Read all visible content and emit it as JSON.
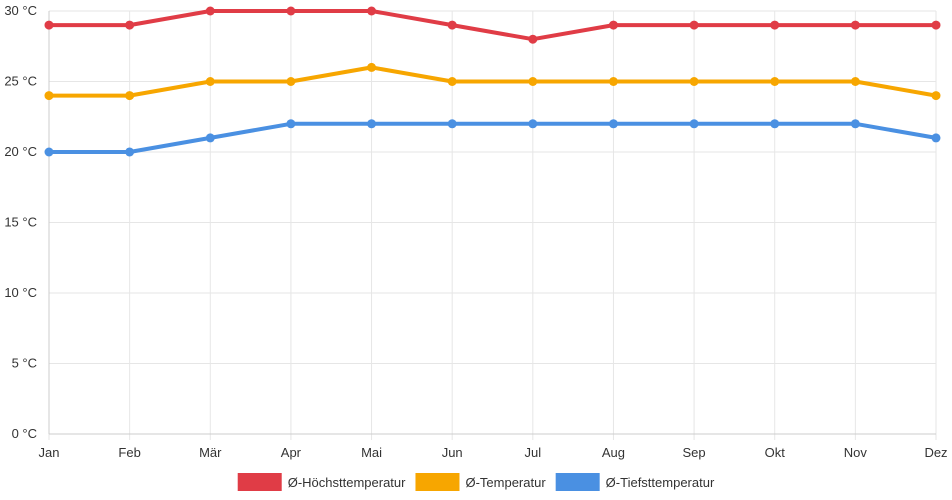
{
  "chart_data": {
    "type": "line",
    "categories": [
      "Jan",
      "Feb",
      "Mär",
      "Apr",
      "Mai",
      "Jun",
      "Jul",
      "Aug",
      "Sep",
      "Okt",
      "Nov",
      "Dez"
    ],
    "series": [
      {
        "name": "Ø-Höchsttemperatur",
        "color": "#e03c46",
        "values": [
          29,
          29,
          30,
          30,
          30,
          29,
          28,
          29,
          29,
          29,
          29,
          29
        ]
      },
      {
        "name": "Ø-Temperatur",
        "color": "#f7a600",
        "values": [
          24,
          24,
          25,
          25,
          26,
          25,
          25,
          25,
          25,
          25,
          25,
          24
        ]
      },
      {
        "name": "Ø-Tiefsttemperatur",
        "color": "#4a90e2",
        "values": [
          20,
          20,
          21,
          22,
          22,
          22,
          22,
          22,
          22,
          22,
          22,
          21
        ]
      }
    ],
    "y_ticks": [
      "0 °C",
      "5 °C",
      "10 °C",
      "15 °C",
      "20 °C",
      "25 °C",
      "30 °C"
    ],
    "ylim": [
      0,
      30
    ],
    "grid": true,
    "legend_position": "bottom",
    "title": "",
    "xlabel": "",
    "ylabel": ""
  }
}
